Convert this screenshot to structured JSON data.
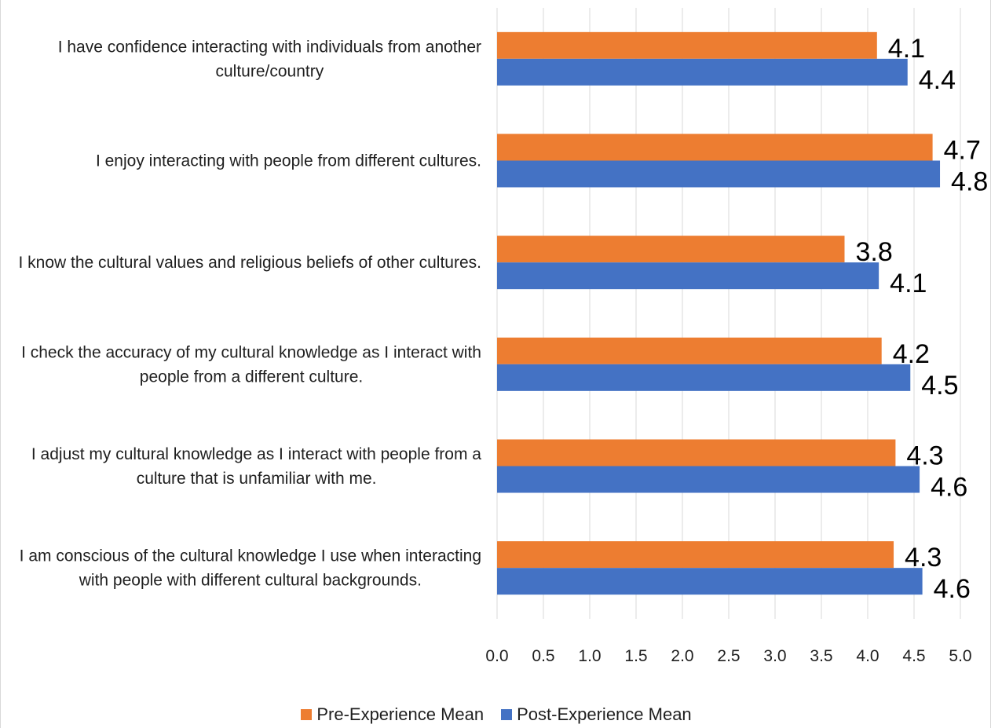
{
  "chart_data": {
    "type": "bar",
    "orientation": "horizontal",
    "categories": [
      [
        "I have confidence interacting with individuals from another",
        "culture/country"
      ],
      [
        "I enjoy interacting with people from different cultures."
      ],
      [
        "I know the cultural values and religious beliefs of other cultures."
      ],
      [
        "I check the accuracy of my cultural knowledge as I interact with",
        "people from a different culture."
      ],
      [
        "I adjust my cultural knowledge as I interact with people from a",
        "culture that is unfamiliar with me."
      ],
      [
        "I am conscious of the cultural knowledge I use when interacting",
        "with people with different cultural backgrounds."
      ]
    ],
    "series": [
      {
        "name": "Pre-Experience Mean",
        "color": "#ed7d31",
        "values": [
          4.1,
          4.7,
          3.75,
          4.15,
          4.3,
          4.28
        ],
        "labels": [
          "4.1",
          "4.7",
          "3.8",
          "4.2",
          "4.3",
          "4.3"
        ]
      },
      {
        "name": "Post-Experience Mean",
        "color": "#4472c4",
        "values": [
          4.43,
          4.78,
          4.12,
          4.46,
          4.56,
          4.59
        ],
        "labels": [
          "4.4",
          "4.8",
          "4.1",
          "4.5",
          "4.6",
          "4.6"
        ]
      }
    ],
    "x_ticks": [
      "0.0",
      "0.5",
      "1.0",
      "1.5",
      "2.0",
      "2.5",
      "3.0",
      "3.5",
      "4.0",
      "4.5",
      "5.0"
    ],
    "xlim": [
      0,
      5
    ],
    "grid": "vertical",
    "legend_position": "bottom",
    "title": "",
    "xlabel": "",
    "ylabel": ""
  }
}
